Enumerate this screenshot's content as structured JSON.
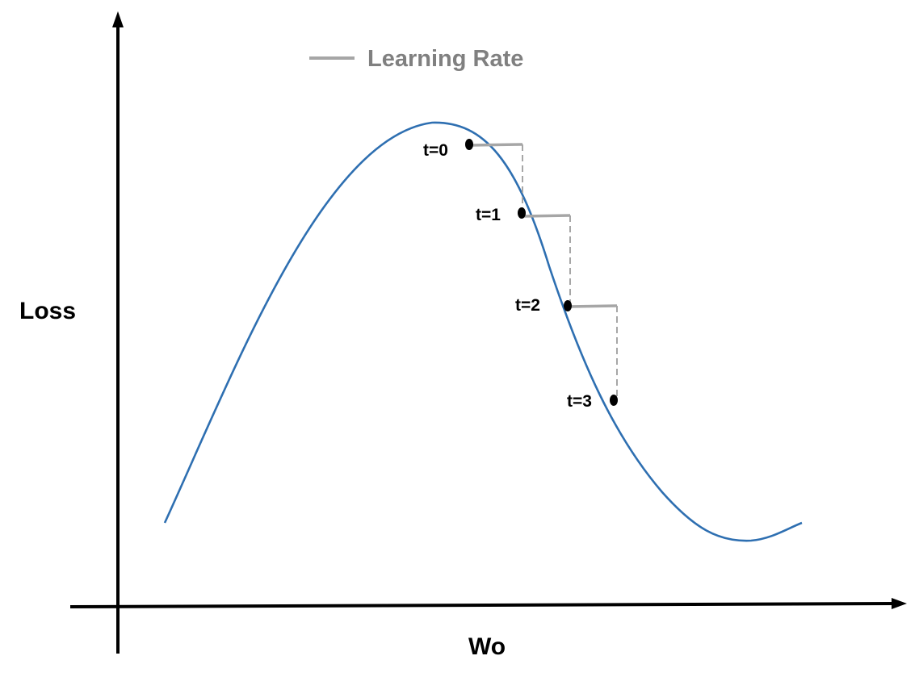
{
  "legend": {
    "label": "Learning Rate",
    "color": "#a6a6a6"
  },
  "axes": {
    "x_label": "Wo",
    "y_label": "Loss",
    "color": "#000000"
  },
  "curve": {
    "color": "#2e6fb1"
  },
  "steps": [
    {
      "label": "t=0"
    },
    {
      "label": "t=1"
    },
    {
      "label": "t=2"
    },
    {
      "label": "t=3"
    }
  ],
  "step_color": "#a6a6a6"
}
